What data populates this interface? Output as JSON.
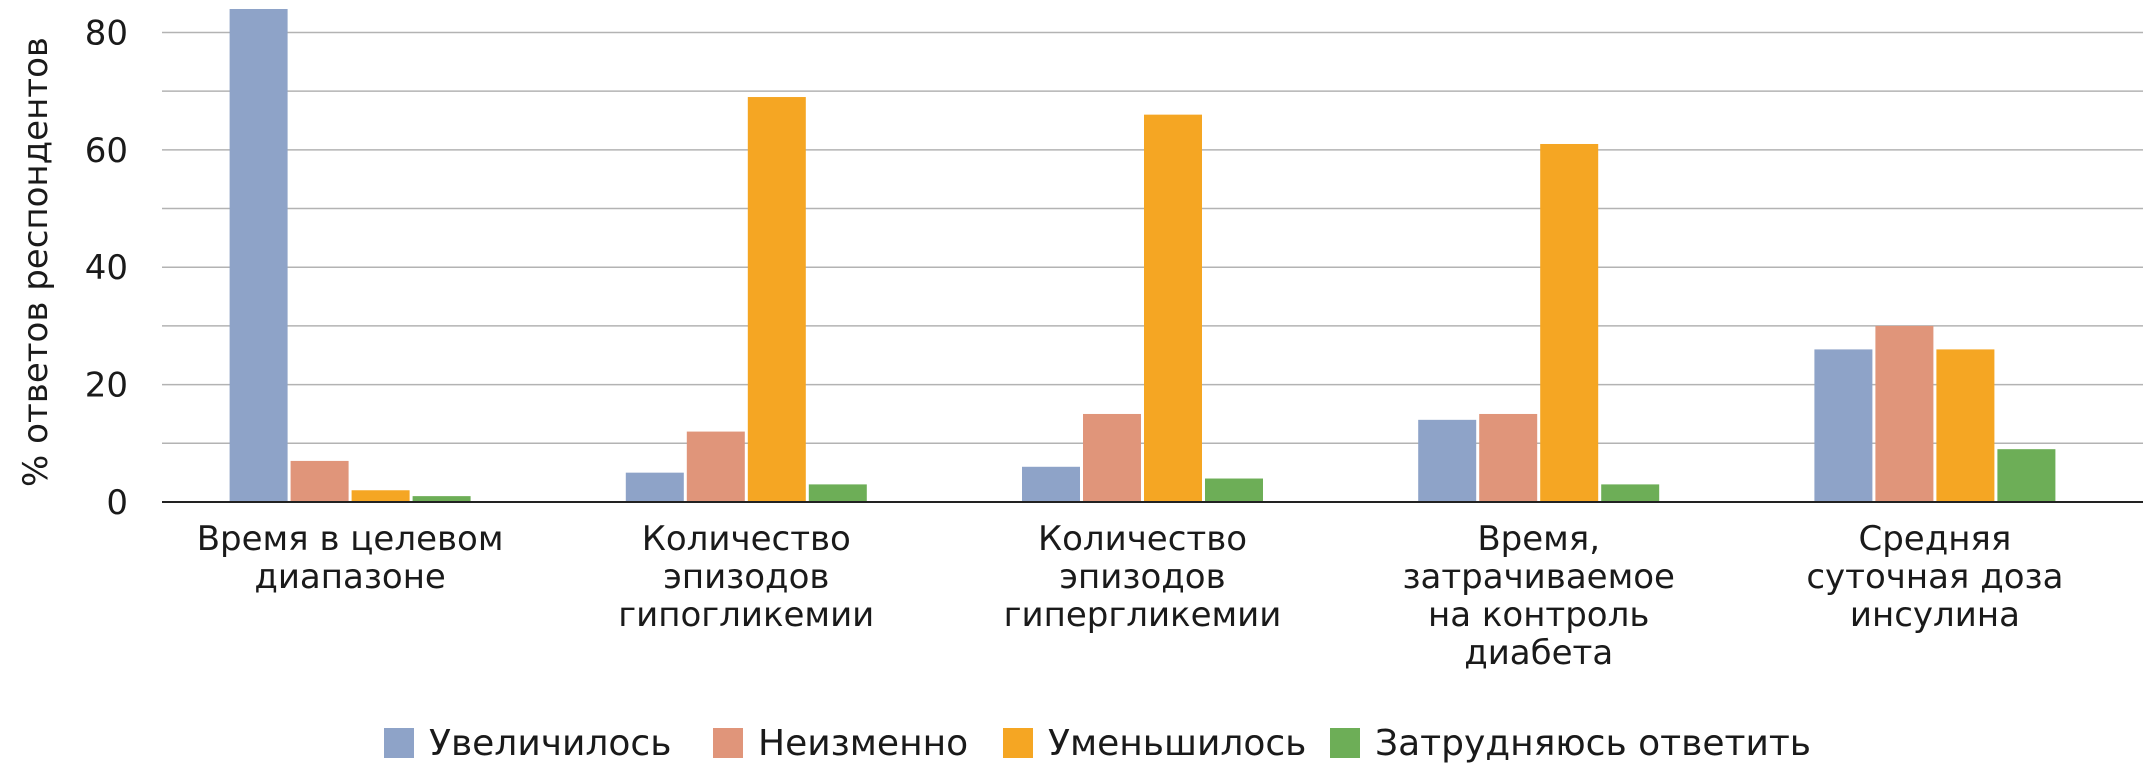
{
  "chart_data": {
    "type": "bar",
    "ylabel": "% ответов респондентов",
    "ylim": [
      0,
      84
    ],
    "yticks": [
      0,
      20,
      40,
      60,
      80
    ],
    "gridlines": [
      0,
      10,
      20,
      30,
      40,
      50,
      60,
      70,
      80
    ],
    "grid": true,
    "legend_position": "bottom",
    "categories": [
      [
        "Время в целевом",
        "диапазоне"
      ],
      [
        "Количество",
        "эпизодов",
        "гипогликемии"
      ],
      [
        "Количество",
        "эпизодов",
        "гипергликемии"
      ],
      [
        "Время,",
        "затрачиваемое",
        "на контроль",
        "диабета"
      ],
      [
        "Средняя",
        "суточная доза",
        "инсулина"
      ]
    ],
    "series": [
      {
        "name": "Увеличилось",
        "color": "#8EA3C8",
        "values": [
          84,
          5,
          6,
          14,
          26
        ]
      },
      {
        "name": "Неизменно",
        "color": "#E0957A",
        "values": [
          7,
          12,
          15,
          15,
          30
        ]
      },
      {
        "name": "Уменьшилось",
        "color": "#F5A623",
        "values": [
          2,
          69,
          66,
          61,
          26
        ]
      },
      {
        "name": "Затрудняюсь ответить",
        "color": "#6DAE57",
        "values": [
          1,
          3,
          4,
          3,
          9
        ]
      }
    ]
  }
}
